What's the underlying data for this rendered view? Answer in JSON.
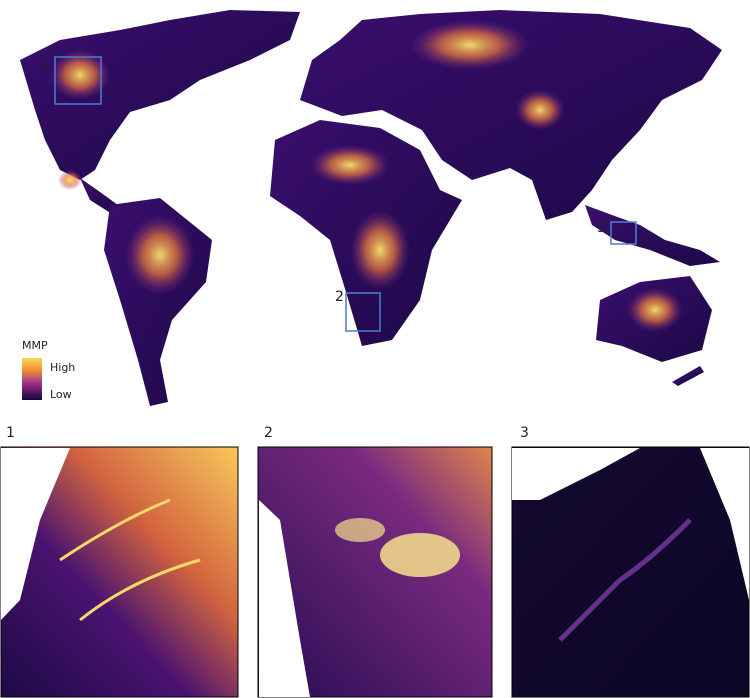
{
  "legend": {
    "title": "MMP",
    "high": "High",
    "low": "Low"
  },
  "regions": [
    "1",
    "2",
    "3"
  ]
}
